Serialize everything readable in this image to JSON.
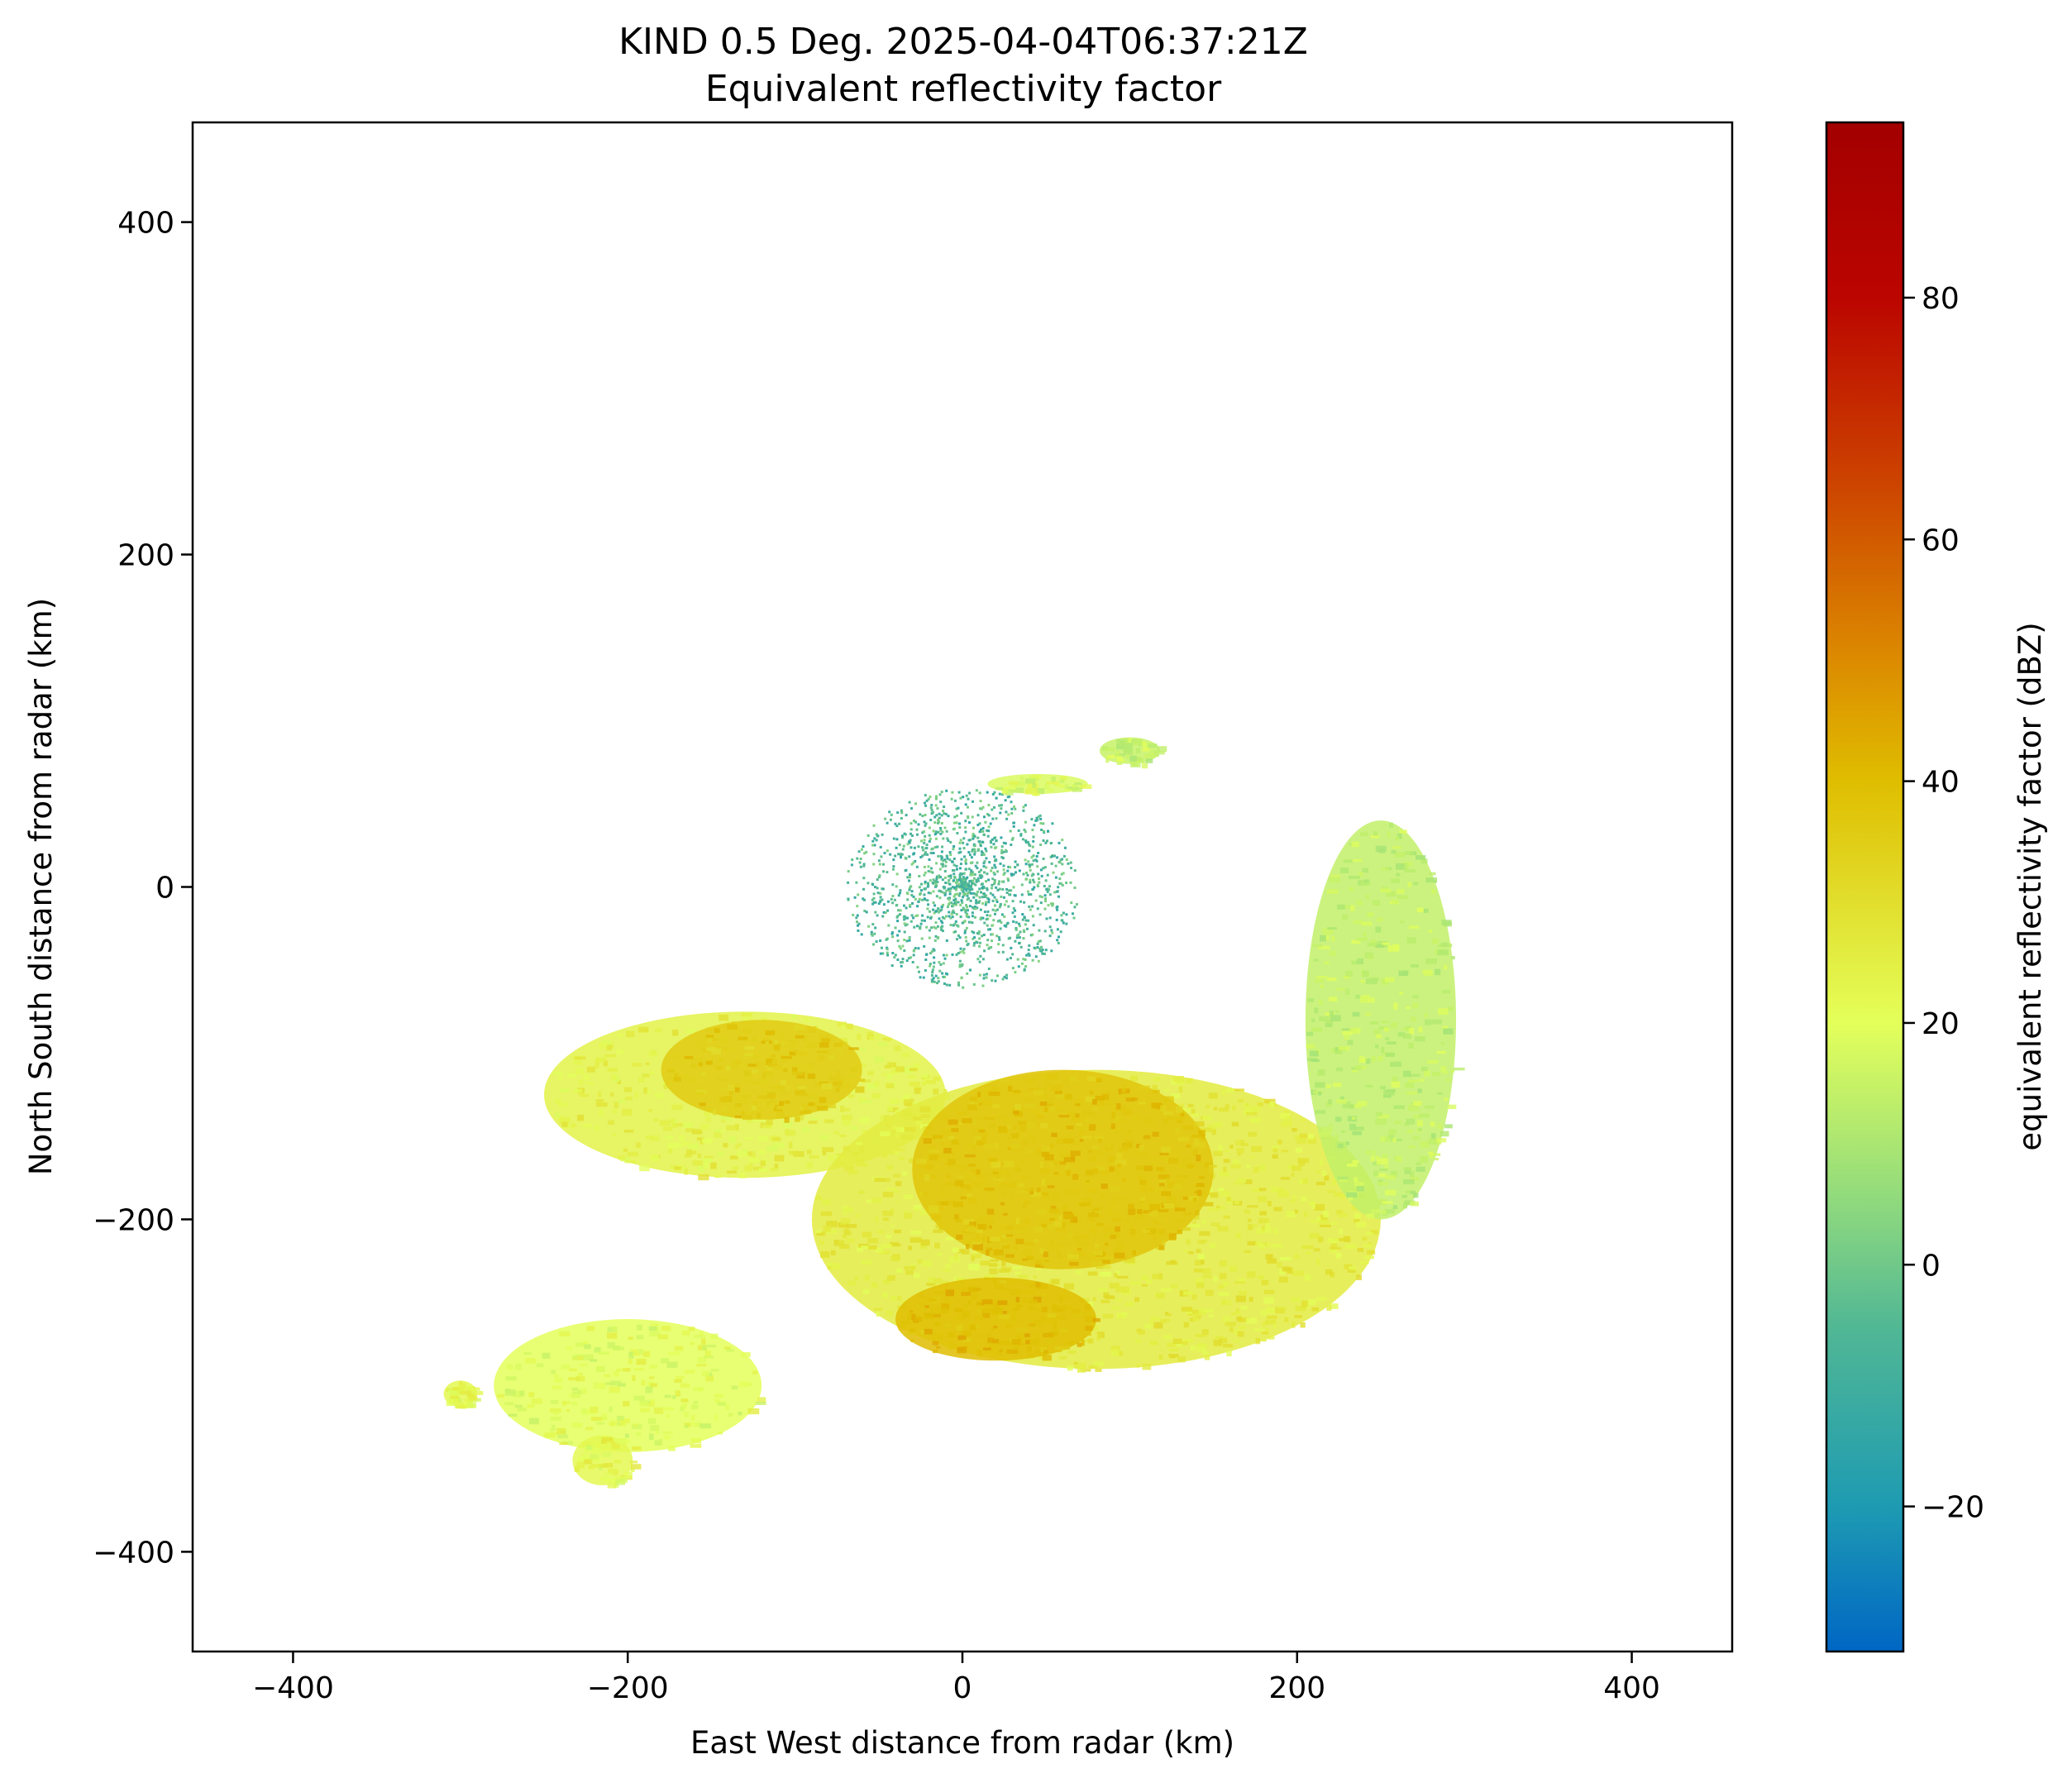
{
  "chart_data": {
    "type": "heatmap",
    "title": "KIND 0.5 Deg. 2025-04-04T06:37:21Z",
    "subtitle": "Equivalent reflectivity factor",
    "xlabel": "East West distance from radar (km)",
    "ylabel": "North South distance from radar (km)",
    "xlim": [
      -460,
      460
    ],
    "ylim": [
      -460,
      460
    ],
    "x_ticks": [
      -400,
      -200,
      0,
      200,
      400
    ],
    "x_tick_labels": [
      "−400",
      "−200",
      "0",
      "200",
      "400"
    ],
    "y_ticks": [
      -400,
      -200,
      0,
      200,
      400
    ],
    "y_tick_labels": [
      "−400",
      "−200",
      "0",
      "200",
      "400"
    ],
    "grid": false,
    "colorbar": {
      "label": "equivalent reflectivity factor (dBZ)",
      "range": [
        -32,
        94.5
      ],
      "ticks": [
        -20,
        0,
        20,
        40,
        60,
        80
      ],
      "tick_labels": [
        "−20",
        "0",
        "20",
        "40",
        "60",
        "80"
      ],
      "colormap_stops": [
        {
          "value": -32,
          "color": "#0066c4"
        },
        {
          "value": -20,
          "color": "#1e9bb2"
        },
        {
          "value": -5,
          "color": "#52b894"
        },
        {
          "value": 5,
          "color": "#8ed97e"
        },
        {
          "value": 20,
          "color": "#e4ff5a"
        },
        {
          "value": 40,
          "color": "#dfbd00"
        },
        {
          "value": 50,
          "color": "#dc8b00"
        },
        {
          "value": 65,
          "color": "#cc4200"
        },
        {
          "value": 80,
          "color": "#bb0500"
        },
        {
          "value": 94.5,
          "color": "#a30000"
        }
      ]
    },
    "echo_regions": [
      {
        "region": "near-radar ground clutter",
        "x": 0,
        "y": 0,
        "rx": 70,
        "ry": 60,
        "dbz": -5,
        "texture": "speckle"
      },
      {
        "region": "northern streak",
        "x": 45,
        "y": 62,
        "rx": 30,
        "ry": 6,
        "dbz": 18
      },
      {
        "region": "northern cell",
        "x": 100,
        "y": 82,
        "rx": 18,
        "ry": 8,
        "dbz": 15
      },
      {
        "region": "western band",
        "x": -130,
        "y": -125,
        "rx": 120,
        "ry": 50,
        "dbz": 24
      },
      {
        "region": "western core",
        "x": -120,
        "y": -110,
        "rx": 60,
        "ry": 30,
        "dbz": 36
      },
      {
        "region": "main southern band",
        "x": 80,
        "y": -200,
        "rx": 170,
        "ry": 90,
        "dbz": 26
      },
      {
        "region": "main core",
        "x": 60,
        "y": -170,
        "rx": 90,
        "ry": 60,
        "dbz": 38
      },
      {
        "region": "south core",
        "x": 20,
        "y": -260,
        "rx": 60,
        "ry": 25,
        "dbz": 40
      },
      {
        "region": "eastern arm",
        "x": 250,
        "y": -80,
        "rx": 45,
        "ry": 120,
        "dbz": 14
      },
      {
        "region": "southwestern trailing echoes",
        "x": -200,
        "y": -300,
        "rx": 80,
        "ry": 40,
        "dbz": 20
      },
      {
        "region": "far southwest cell",
        "x": -300,
        "y": -305,
        "rx": 10,
        "ry": 8,
        "dbz": 22
      },
      {
        "region": "southwest cluster",
        "x": -215,
        "y": -345,
        "rx": 18,
        "ry": 15,
        "dbz": 22
      }
    ]
  }
}
